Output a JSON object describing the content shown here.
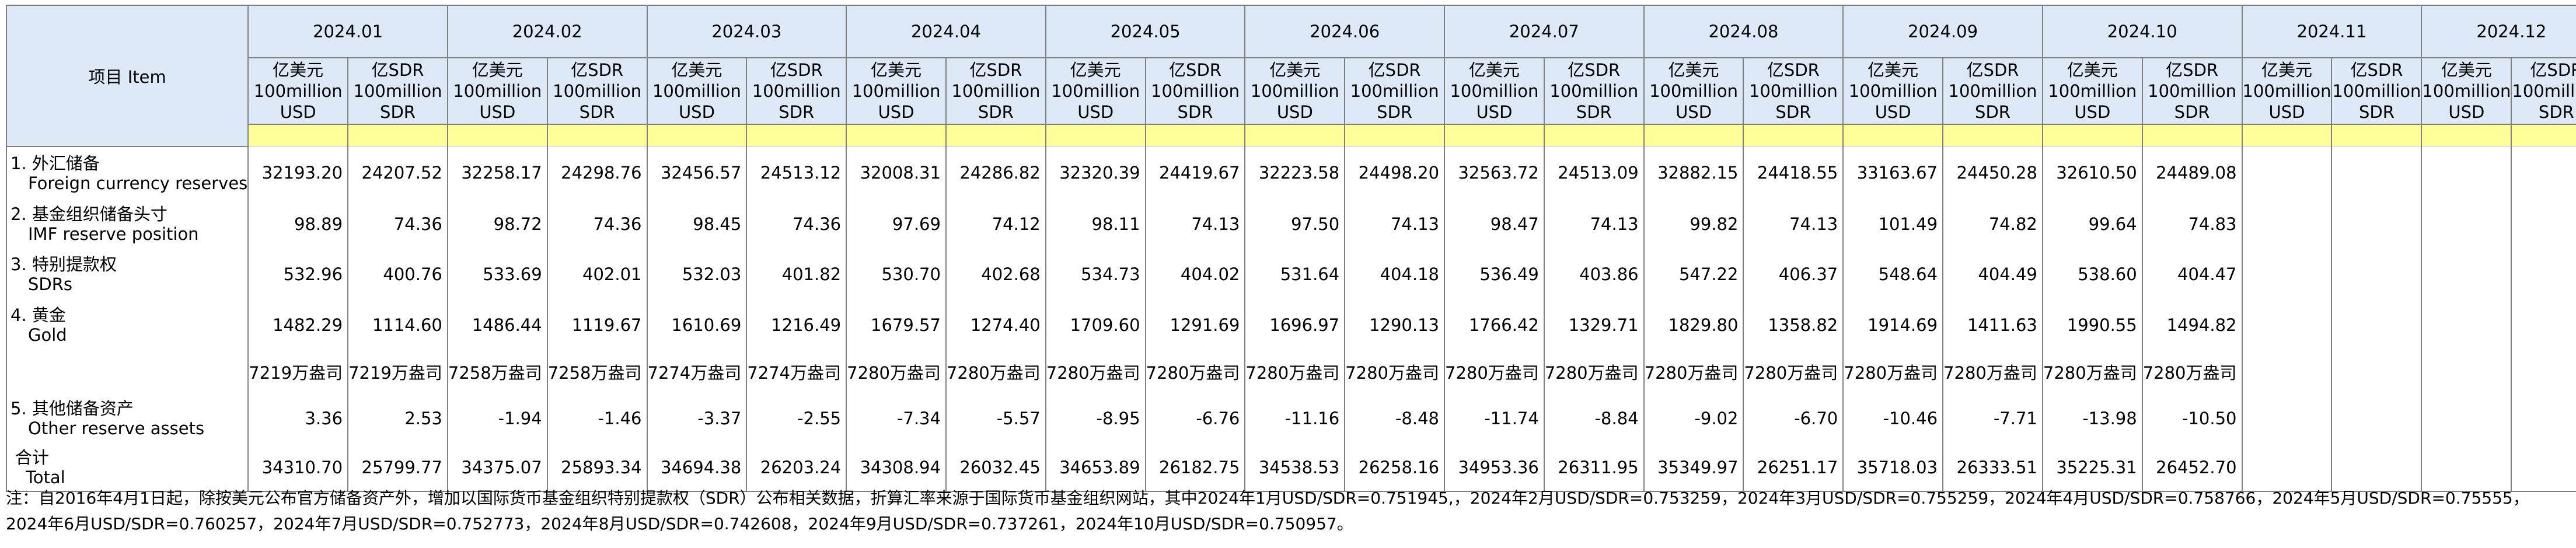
{
  "header": {
    "item_label": "项目 Item",
    "months": [
      "2024.01",
      "2024.02",
      "2024.03",
      "2024.04",
      "2024.05",
      "2024.06",
      "2024.07",
      "2024.08",
      "2024.09",
      "2024.10",
      "2024.11",
      "2024.12"
    ],
    "usd_unit": [
      "亿美元",
      "100million",
      "USD"
    ],
    "sdr_unit": [
      "亿SDR",
      "100million",
      "SDR"
    ]
  },
  "rows": [
    {
      "label_zh": "1. 外汇储备",
      "label_en": "Foreign currency reserves",
      "values": [
        "32193.20",
        "24207.52",
        "32258.17",
        "24298.76",
        "32456.57",
        "24513.12",
        "32008.31",
        "24286.82",
        "32320.39",
        "24419.67",
        "32223.58",
        "24498.20",
        "32563.72",
        "24513.09",
        "32882.15",
        "24418.55",
        "33163.67",
        "24450.28",
        "32610.50",
        "24489.08",
        "",
        "",
        "",
        ""
      ]
    },
    {
      "label_zh": "2. 基金组织储备头寸",
      "label_en": "IMF reserve position",
      "values": [
        "98.89",
        "74.36",
        "98.72",
        "74.36",
        "98.45",
        "74.36",
        "97.69",
        "74.12",
        "98.11",
        "74.13",
        "97.50",
        "74.13",
        "98.47",
        "74.13",
        "99.82",
        "74.13",
        "101.49",
        "74.82",
        "99.64",
        "74.83",
        "",
        "",
        "",
        ""
      ]
    },
    {
      "label_zh": "3. 特别提款权",
      "label_en": "SDRs",
      "values": [
        "532.96",
        "400.76",
        "533.69",
        "402.01",
        "532.03",
        "401.82",
        "530.70",
        "402.68",
        "534.73",
        "404.02",
        "531.64",
        "404.18",
        "536.49",
        "403.86",
        "547.22",
        "406.37",
        "548.64",
        "404.49",
        "538.60",
        "404.47",
        "",
        "",
        "",
        ""
      ]
    },
    {
      "label_zh": "4. 黄金",
      "label_en": "Gold",
      "values": [
        "1482.29",
        "1114.60",
        "1486.44",
        "1119.67",
        "1610.69",
        "1216.49",
        "1679.57",
        "1274.40",
        "1709.60",
        "1291.69",
        "1696.97",
        "1290.13",
        "1766.42",
        "1329.71",
        "1829.80",
        "1358.82",
        "1914.69",
        "1411.63",
        "1990.55",
        "1494.82",
        "",
        "",
        "",
        ""
      ]
    },
    {
      "label_zh": "",
      "label_en": "",
      "values": [
        "7219万盎司",
        "7219万盎司",
        "7258万盎司",
        "7258万盎司",
        "7274万盎司",
        "7274万盎司",
        "7280万盎司",
        "7280万盎司",
        "7280万盎司",
        "7280万盎司",
        "7280万盎司",
        "7280万盎司",
        "7280万盎司",
        "7280万盎司",
        "7280万盎司",
        "7280万盎司",
        "7280万盎司",
        "7280万盎司",
        "7280万盎司",
        "7280万盎司",
        "",
        "",
        "",
        ""
      ]
    },
    {
      "label_zh": "5. 其他储备资产",
      "label_en": "Other reserve assets",
      "values": [
        "3.36",
        "2.53",
        "-1.94",
        "-1.46",
        "-3.37",
        "-2.55",
        "-7.34",
        "-5.57",
        "-8.95",
        "-6.76",
        "-11.16",
        "-8.48",
        "-11.74",
        "-8.84",
        "-9.02",
        "-6.70",
        "-10.46",
        "-7.71",
        "-13.98",
        "-10.50",
        "",
        "",
        "",
        ""
      ]
    },
    {
      "label_zh": "合计",
      "label_en": "Total",
      "values": [
        "34310.70",
        "25799.77",
        "34375.07",
        "25893.34",
        "34694.38",
        "26203.24",
        "34308.94",
        "26032.45",
        "34653.89",
        "26182.75",
        "34538.53",
        "26258.16",
        "34953.36",
        "26311.95",
        "35349.97",
        "26251.17",
        "35718.03",
        "26333.51",
        "35225.31",
        "26452.70",
        "",
        "",
        "",
        ""
      ]
    }
  ],
  "note": "注：自2016年4月1日起，除按美元公布官方储备资产外，增加以国际货币基金组织特别提款权（SDR）公布相关数据，折算汇率来源于国际货币基金组织网站，其中2024年1月USD/SDR=0.751945,，2024年2月USD/SDR=0.753259，2024年3月USD/SDR=0.755259，2024年4月USD/SDR=0.758766，2024年5月USD/SDR=0.75555，2024年6月USD/SDR=0.760257，2024年7月USD/SDR=0.752773，2024年8月USD/SDR=0.742608，2024年9月USD/SDR=0.737261，2024年10月USD/SDR=0.750957。"
}
